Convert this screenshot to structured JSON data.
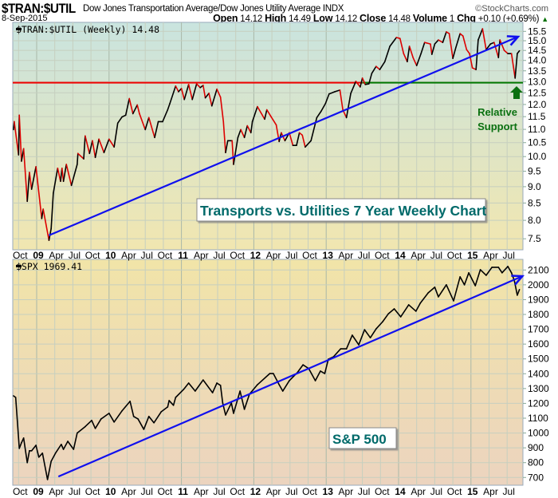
{
  "header": {
    "symbol": "$TRAN:$UTIL",
    "description": "Dow Jones Transportation Average/Dow Jones Utility Average INDX",
    "brand": "©StockCharts.com",
    "date": "8-Sep-2015",
    "open_label": "Open",
    "open": "14.12",
    "high_label": "High",
    "high": "14.49",
    "low_label": "Low",
    "low": "14.12",
    "close_label": "Close",
    "close": "14.48",
    "volume_label": "Volume",
    "volume": "1",
    "chg_label": "Chg",
    "chg": "+0.10 (+0.69%)",
    "chg_arrow": "▲"
  },
  "colors": {
    "up": "#000000",
    "down": "#dd0000",
    "trendline": "#1010ee",
    "resistance": "#ee0000",
    "support": "#007700",
    "annotation": "#006a6a"
  },
  "chart_data": [
    {
      "type": "line",
      "legend": "$TRAN:$UTIL (Weekly) 14.48",
      "scale": "log",
      "ylim": [
        7.21,
        16.0
      ],
      "xlim": [
        2008.65,
        2015.72
      ],
      "yticks": [
        "7.5",
        "8.0",
        "8.5",
        "9.0",
        "9.5",
        "10.0",
        "10.5",
        "11.0",
        "11.5",
        "12.0",
        "12.5",
        "13.0",
        "13.5",
        "14.0",
        "14.5",
        "15.0",
        "15.5"
      ],
      "x": [
        2008.68,
        2008.69,
        2008.75,
        2008.76,
        2008.79,
        2008.82,
        2008.87,
        2008.9,
        2008.93,
        2008.99,
        2009.07,
        2009.09,
        2009.17,
        2009.2,
        2009.23,
        2009.29,
        2009.33,
        2009.35,
        2009.37,
        2009.41,
        2009.48,
        2009.56,
        2009.57,
        2009.65,
        2009.67,
        2009.73,
        2009.77,
        2009.81,
        2009.86,
        2009.93,
        2010.0,
        2010.07,
        2010.12,
        2010.18,
        2010.23,
        2010.28,
        2010.33,
        2010.39,
        2010.42,
        2010.5,
        2010.55,
        2010.63,
        2010.68,
        2010.74,
        2010.81,
        2010.84,
        2010.92,
        2010.96,
        2011.0,
        2011.04,
        2011.1,
        2011.15,
        2011.21,
        2011.26,
        2011.3,
        2011.33,
        2011.38,
        2011.42,
        2011.49,
        2011.54,
        2011.58,
        2011.61,
        2011.64,
        2011.7,
        2011.72,
        2011.78,
        2011.82,
        2011.87,
        2011.91,
        2011.96,
        2011.98,
        2012.05,
        2012.15,
        2012.18,
        2012.24,
        2012.31,
        2012.35,
        2012.38,
        2012.43,
        2012.49,
        2012.54,
        2012.59,
        2012.63,
        2012.67,
        2012.71,
        2012.79,
        2012.87,
        2012.93,
        2012.99,
        2013.04,
        2013.12,
        2013.19,
        2013.23,
        2013.28,
        2013.34,
        2013.41,
        2013.47,
        2013.5,
        2013.54,
        2013.59,
        2013.63,
        2013.69,
        2013.74,
        2013.81,
        2013.88,
        2013.97,
        2014.02,
        2014.07,
        2014.12,
        2014.15,
        2014.2,
        2014.25,
        2014.31,
        2014.36,
        2014.44,
        2014.46,
        2014.5,
        2014.55,
        2014.61,
        2014.66,
        2014.7,
        2014.75,
        2014.79,
        2014.85,
        2014.89,
        2014.94,
        2014.98,
        2015.02,
        2015.07,
        2015.1,
        2015.16,
        2015.21,
        2015.27,
        2015.32,
        2015.38,
        2015.4,
        2015.46,
        2015.51,
        2015.56,
        2015.61,
        2015.64,
        2015.67
      ],
      "values": [
        10.99,
        11.3,
        10.06,
        11.56,
        9.84,
        10.28,
        8.55,
        9.46,
        8.92,
        9.65,
        8.05,
        8.32,
        7.46,
        7.77,
        8.8,
        9.6,
        9.17,
        9.6,
        9.17,
        9.73,
        9.04,
        9.73,
        10.11,
        9.92,
        10.75,
        10.11,
        10.57,
        9.97,
        10.63,
        10.14,
        10.63,
        10.34,
        11.24,
        11.49,
        11.56,
        12.25,
        11.62,
        11.98,
        11.62,
        10.99,
        11.46,
        10.69,
        11.3,
        11.3,
        11.78,
        12.04,
        12.8,
        12.55,
        12.69,
        12.21,
        12.87,
        12.21,
        12.9,
        12.73,
        12.83,
        12.28,
        12.48,
        11.94,
        12.66,
        12.31,
        11.3,
        10.14,
        10.57,
        10.57,
        9.73,
        10.69,
        10.99,
        10.69,
        11.14,
        10.87,
        11.3,
        11.91,
        11.4,
        11.78,
        11.49,
        11.17,
        10.54,
        10.87,
        10.57,
        10.87,
        10.4,
        10.4,
        10.87,
        10.78,
        10.34,
        10.57,
        11.46,
        11.72,
        12.04,
        12.45,
        12.55,
        12.62,
        11.78,
        11.46,
        12.48,
        13.01,
        12.76,
        13.16,
        12.87,
        12.9,
        13.38,
        13.71,
        13.56,
        13.94,
        14.71,
        15.17,
        15.12,
        14.34,
        13.94,
        14.71,
        14.14,
        13.75,
        14.34,
        14.91,
        14.83,
        14.3,
        14.83,
        15.04,
        14.91,
        15.47,
        15.38,
        14.1,
        14.63,
        15.38,
        15.25,
        14.54,
        14.34,
        13.64,
        13.56,
        15.04,
        15.64,
        14.54,
        14.83,
        14.91,
        14.14,
        15.04,
        14.5,
        14.34,
        14.34,
        13.16,
        14.34,
        14.48
      ],
      "horizontal_line": {
        "value": 12.95,
        "change_at": 2013.5
      },
      "trendline": {
        "from": [
          2009.17,
          7.59
        ],
        "to": [
          2015.65,
          15.21
        ]
      },
      "annotations": {
        "title_box": "Transports vs. Utilities 7 Year Weekly Chart",
        "support_line1": "Relative",
        "support_line2": "Support"
      }
    },
    {
      "type": "line",
      "legend": "$SPX 1969.41",
      "scale": "linear",
      "ylim": [
        648,
        2172
      ],
      "xlim": [
        2008.65,
        2015.72
      ],
      "yticks": [
        "700",
        "800",
        "900",
        "1000",
        "1100",
        "1200",
        "1300",
        "1400",
        "1500",
        "1600",
        "1700",
        "1800",
        "1900",
        "2000",
        "2100"
      ],
      "x": [
        2008.68,
        2008.71,
        2008.76,
        2008.79,
        2008.82,
        2008.87,
        2008.9,
        2008.93,
        2008.99,
        2009.03,
        2009.08,
        2009.15,
        2009.2,
        2009.26,
        2009.34,
        2009.37,
        2009.43,
        2009.51,
        2009.56,
        2009.67,
        2009.76,
        2009.81,
        2009.89,
        2010.0,
        2010.07,
        2010.18,
        2010.29,
        2010.34,
        2010.4,
        2010.48,
        2010.55,
        2010.62,
        2010.72,
        2010.81,
        2010.83,
        2010.89,
        2010.92,
        2011.03,
        2011.1,
        2011.19,
        2011.3,
        2011.43,
        2011.49,
        2011.54,
        2011.57,
        2011.61,
        2011.69,
        2011.72,
        2011.81,
        2011.87,
        2011.94,
        2012.05,
        2012.22,
        2012.27,
        2012.35,
        2012.4,
        2012.49,
        2012.6,
        2012.68,
        2012.76,
        2012.85,
        2012.92,
        2012.98,
        2013.03,
        2013.1,
        2013.2,
        2013.28,
        2013.36,
        2013.45,
        2013.53,
        2013.61,
        2013.69,
        2013.78,
        2013.86,
        2013.94,
        2014.03,
        2014.14,
        2014.24,
        2014.3,
        2014.41,
        2014.5,
        2014.55,
        2014.66,
        2014.76,
        2014.85,
        2014.91,
        2014.97,
        2015.06,
        2015.13,
        2015.21,
        2015.29,
        2015.38,
        2015.43,
        2015.51,
        2015.56,
        2015.6,
        2015.64,
        2015.67
      ],
      "values": [
        1251,
        1240,
        896,
        934,
        966,
        800,
        880,
        880,
        917,
        837,
        864,
        686,
        809,
        864,
        923,
        890,
        944,
        890,
        1000,
        1043,
        1085,
        1031,
        1095,
        1133,
        1074,
        1150,
        1214,
        1112,
        1095,
        1025,
        1112,
        1069,
        1143,
        1176,
        1219,
        1187,
        1240,
        1294,
        1337,
        1283,
        1358,
        1272,
        1337,
        1321,
        1203,
        1122,
        1203,
        1133,
        1283,
        1160,
        1262,
        1326,
        1401,
        1401,
        1326,
        1283,
        1353,
        1407,
        1460,
        1434,
        1353,
        1418,
        1401,
        1498,
        1514,
        1568,
        1568,
        1660,
        1595,
        1697,
        1643,
        1703,
        1751,
        1805,
        1838,
        1784,
        1865,
        1822,
        1876,
        1946,
        1984,
        1919,
        2000,
        1892,
        2054,
        2000,
        2081,
        1994,
        2102,
        2064,
        2118,
        2118,
        2081,
        2124,
        2081,
        2027,
        1930,
        1968
      ],
      "trendline": {
        "from": [
          2009.3,
          706
        ],
        "to": [
          2015.71,
          2058
        ]
      },
      "annotations": {
        "title_box": "S&P 500"
      }
    }
  ],
  "x_axis": {
    "labels": [
      {
        "t": 2008.75,
        "text": "Oct",
        "bold": false
      },
      {
        "t": 2009.0,
        "text": "09",
        "bold": true
      },
      {
        "t": 2009.25,
        "text": "Apr",
        "bold": false
      },
      {
        "t": 2009.5,
        "text": "Jul",
        "bold": false
      },
      {
        "t": 2009.75,
        "text": "Oct",
        "bold": false
      },
      {
        "t": 2010.0,
        "text": "10",
        "bold": true
      },
      {
        "t": 2010.25,
        "text": "Apr",
        "bold": false
      },
      {
        "t": 2010.5,
        "text": "Jul",
        "bold": false
      },
      {
        "t": 2010.75,
        "text": "Oct",
        "bold": false
      },
      {
        "t": 2011.0,
        "text": "11",
        "bold": true
      },
      {
        "t": 2011.25,
        "text": "Apr",
        "bold": false
      },
      {
        "t": 2011.5,
        "text": "Jul",
        "bold": false
      },
      {
        "t": 2011.75,
        "text": "Oct",
        "bold": false
      },
      {
        "t": 2012.0,
        "text": "12",
        "bold": true
      },
      {
        "t": 2012.25,
        "text": "Apr",
        "bold": false
      },
      {
        "t": 2012.5,
        "text": "Jul",
        "bold": false
      },
      {
        "t": 2012.75,
        "text": "Oct",
        "bold": false
      },
      {
        "t": 2013.0,
        "text": "13",
        "bold": true
      },
      {
        "t": 2013.25,
        "text": "Apr",
        "bold": false
      },
      {
        "t": 2013.5,
        "text": "Jul",
        "bold": false
      },
      {
        "t": 2013.75,
        "text": "Oct",
        "bold": false
      },
      {
        "t": 2014.0,
        "text": "14",
        "bold": true
      },
      {
        "t": 2014.25,
        "text": "Apr",
        "bold": false
      },
      {
        "t": 2014.5,
        "text": "Jul",
        "bold": false
      },
      {
        "t": 2014.75,
        "text": "Oct",
        "bold": false
      },
      {
        "t": 2015.0,
        "text": "15",
        "bold": true
      },
      {
        "t": 2015.25,
        "text": "Apr",
        "bold": false
      },
      {
        "t": 2015.5,
        "text": "Jul",
        "bold": false
      }
    ]
  }
}
